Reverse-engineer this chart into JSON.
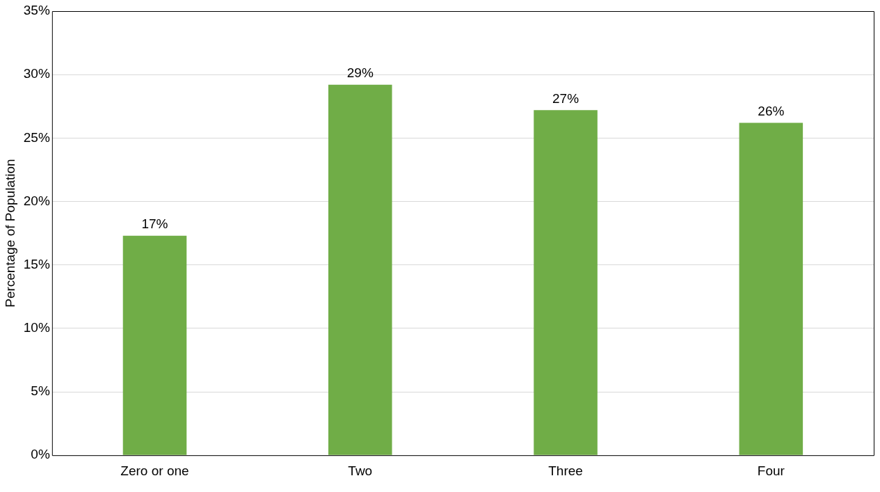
{
  "chart_data": {
    "type": "bar",
    "ylabel": "Percentage of Population",
    "categories": [
      "Zero or one",
      "Two",
      "Three",
      "Four"
    ],
    "values": [
      17.3,
      29.2,
      27.2,
      26.2
    ],
    "value_labels": [
      "17%",
      "29%",
      "27%",
      "26%"
    ],
    "color": "#70ad47",
    "ylim": [
      0,
      35
    ],
    "yticks": [
      {
        "value": 0,
        "label": "0%"
      },
      {
        "value": 5,
        "label": "5%"
      },
      {
        "value": 10,
        "label": "10%"
      },
      {
        "value": 15,
        "label": "15%"
      },
      {
        "value": 20,
        "label": "20%"
      },
      {
        "value": 25,
        "label": "25%"
      },
      {
        "value": 30,
        "label": "30%"
      },
      {
        "value": 35,
        "label": "35%"
      }
    ],
    "grid": "y",
    "legend": false
  }
}
